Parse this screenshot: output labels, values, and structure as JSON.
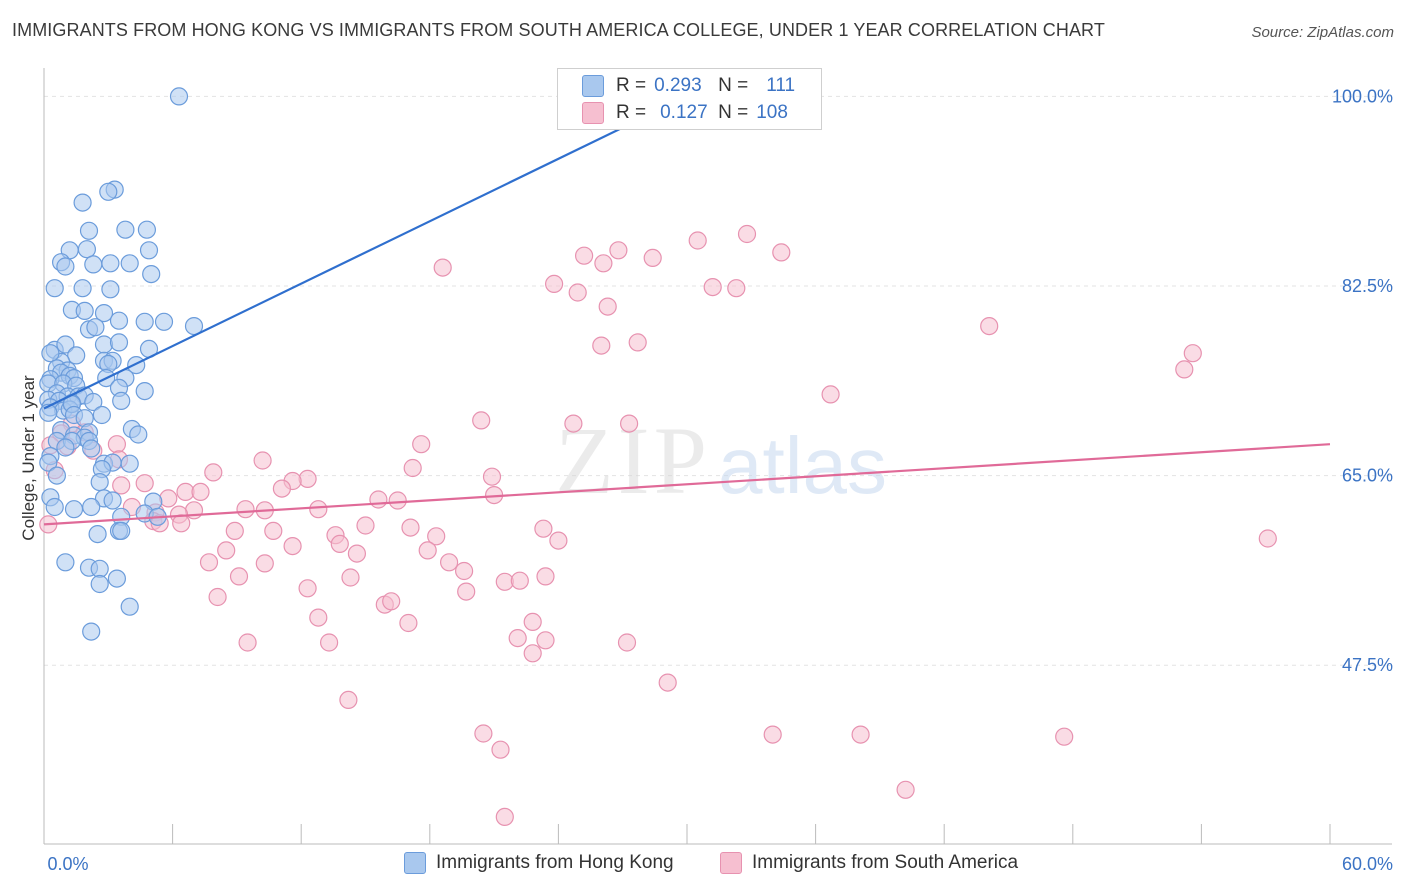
{
  "header": {
    "title": "IMMIGRANTS FROM HONG KONG VS IMMIGRANTS FROM SOUTH AMERICA COLLEGE, UNDER 1 YEAR CORRELATION CHART",
    "source": "Source: ZipAtlas.com"
  },
  "legend": {
    "r_label": "R =",
    "n_label": "N =",
    "hk": {
      "r": "0.293",
      "n": "111"
    },
    "sa": {
      "r": "0.127",
      "n": "108"
    }
  },
  "watermark": {
    "zip": "ZIP",
    "atlas": "atlas"
  },
  "colors": {
    "blue_fill": "#a9c8ee",
    "blue_stroke": "#6b9cdb",
    "blue_line": "#2f6fce",
    "pink_fill": "#f6bfd0",
    "pink_stroke": "#e792b0",
    "pink_line": "#e06a98",
    "tick_label": "#3b73c4",
    "grid": "#e3e3e3"
  },
  "chart_data": {
    "type": "scatter",
    "title": "IMMIGRANTS FROM HONG KONG VS IMMIGRANTS FROM SOUTH AMERICA COLLEGE, UNDER 1 YEAR CORRELATION CHART",
    "ylabel": "College, Under 1 year",
    "xlabel": "",
    "xlim": [
      0,
      60
    ],
    "ylim": [
      31,
      101.7
    ],
    "x_tick_labels": [
      "0.0%",
      "60.0%"
    ],
    "y_ticks": [
      47.5,
      65.0,
      82.5,
      100.0
    ],
    "y_tick_labels": [
      "47.5%",
      "65.0%",
      "82.5%",
      "100.0%"
    ],
    "grid": "horizontal dashed",
    "legend_placement": "top-center",
    "series": [
      {
        "name": "Immigrants from Hong Kong",
        "color": "blue",
        "trend": {
          "x": [
            0,
            30
          ],
          "y": [
            71.2,
            100.0
          ]
        },
        "points": [
          [
            6.3,
            100
          ],
          [
            3.3,
            91.4
          ],
          [
            1.8,
            90.2
          ],
          [
            3.0,
            91.2
          ],
          [
            4.8,
            87.7
          ],
          [
            3.8,
            87.7
          ],
          [
            2.1,
            87.6
          ],
          [
            2.0,
            85.9
          ],
          [
            4.0,
            84.6
          ],
          [
            1.2,
            85.8
          ],
          [
            4.9,
            85.8
          ],
          [
            0.8,
            84.7
          ],
          [
            3.1,
            84.6
          ],
          [
            2.3,
            84.5
          ],
          [
            1.0,
            84.3
          ],
          [
            0.5,
            82.3
          ],
          [
            1.8,
            82.3
          ],
          [
            3.1,
            82.2
          ],
          [
            5.0,
            83.6
          ],
          [
            1.3,
            80.3
          ],
          [
            1.9,
            80.2
          ],
          [
            2.8,
            80.0
          ],
          [
            3.5,
            79.3
          ],
          [
            4.7,
            79.2
          ],
          [
            5.6,
            79.2
          ],
          [
            7.0,
            78.8
          ],
          [
            2.1,
            78.5
          ],
          [
            2.4,
            78.7
          ],
          [
            2.8,
            77.1
          ],
          [
            3.5,
            77.3
          ],
          [
            0.5,
            76.6
          ],
          [
            1.0,
            77.1
          ],
          [
            4.9,
            76.7
          ],
          [
            1.5,
            76.1
          ],
          [
            0.8,
            75.5
          ],
          [
            0.3,
            76.3
          ],
          [
            2.8,
            75.6
          ],
          [
            3.2,
            75.6
          ],
          [
            3.0,
            75.3
          ],
          [
            4.3,
            75.2
          ],
          [
            0.6,
            74.9
          ],
          [
            1.1,
            74.7
          ],
          [
            0.8,
            74.5
          ],
          [
            1.2,
            74.2
          ],
          [
            0.3,
            73.9
          ],
          [
            1.4,
            74.0
          ],
          [
            2.9,
            74.0
          ],
          [
            3.8,
            74.0
          ],
          [
            0.2,
            73.5
          ],
          [
            0.9,
            73.5
          ],
          [
            1.5,
            73.3
          ],
          [
            3.5,
            73.1
          ],
          [
            4.7,
            72.8
          ],
          [
            0.6,
            72.6
          ],
          [
            1.1,
            72.3
          ],
          [
            1.6,
            72.3
          ],
          [
            1.9,
            72.4
          ],
          [
            0.2,
            72.0
          ],
          [
            0.7,
            71.9
          ],
          [
            1.3,
            71.7
          ],
          [
            2.3,
            71.8
          ],
          [
            3.6,
            71.9
          ],
          [
            0.3,
            71.3
          ],
          [
            0.9,
            71.0
          ],
          [
            1.2,
            71.1
          ],
          [
            1.3,
            71.6
          ],
          [
            0.2,
            70.8
          ],
          [
            1.4,
            70.6
          ],
          [
            2.7,
            70.6
          ],
          [
            1.9,
            70.3
          ],
          [
            0.8,
            69.2
          ],
          [
            1.4,
            68.7
          ],
          [
            2.1,
            69.0
          ],
          [
            1.9,
            68.5
          ],
          [
            4.1,
            69.3
          ],
          [
            4.4,
            68.8
          ],
          [
            0.6,
            68.2
          ],
          [
            1.3,
            68.2
          ],
          [
            2.1,
            68.2
          ],
          [
            1.0,
            67.6
          ],
          [
            2.2,
            67.5
          ],
          [
            0.3,
            66.8
          ],
          [
            0.2,
            66.2
          ],
          [
            2.8,
            66.1
          ],
          [
            3.2,
            66.2
          ],
          [
            4.0,
            66.1
          ],
          [
            2.7,
            65.6
          ],
          [
            0.6,
            65.0
          ],
          [
            2.6,
            64.4
          ],
          [
            0.3,
            63.0
          ],
          [
            2.8,
            62.9
          ],
          [
            3.2,
            62.7
          ],
          [
            5.1,
            62.6
          ],
          [
            0.5,
            62.1
          ],
          [
            2.2,
            62.1
          ],
          [
            1.4,
            61.9
          ],
          [
            3.6,
            61.2
          ],
          [
            4.7,
            61.5
          ],
          [
            5.3,
            61.2
          ],
          [
            2.5,
            59.6
          ],
          [
            3.5,
            59.9
          ],
          [
            3.6,
            59.9
          ],
          [
            1.0,
            57.0
          ],
          [
            2.1,
            56.5
          ],
          [
            2.6,
            56.4
          ],
          [
            3.4,
            55.5
          ],
          [
            2.6,
            55.0
          ],
          [
            4.0,
            52.9
          ],
          [
            2.2,
            50.6
          ]
        ]
      },
      {
        "name": "Immigrants from South America",
        "color": "pink",
        "trend": {
          "x": [
            0,
            60
          ],
          "y": [
            60.5,
            67.9
          ]
        },
        "points": [
          [
            35.8,
            100
          ],
          [
            32.8,
            87.3
          ],
          [
            30.5,
            86.7
          ],
          [
            26.8,
            85.8
          ],
          [
            34.4,
            85.6
          ],
          [
            25.2,
            85.3
          ],
          [
            28.4,
            85.1
          ],
          [
            26.1,
            84.6
          ],
          [
            18.6,
            84.2
          ],
          [
            23.8,
            82.7
          ],
          [
            31.2,
            82.4
          ],
          [
            32.3,
            82.3
          ],
          [
            24.9,
            81.9
          ],
          [
            26.3,
            80.6
          ],
          [
            44.1,
            78.8
          ],
          [
            27.7,
            77.3
          ],
          [
            26.0,
            77.0
          ],
          [
            53.6,
            76.3
          ],
          [
            53.2,
            74.8
          ],
          [
            36.7,
            72.5
          ],
          [
            20.4,
            70.1
          ],
          [
            24.7,
            69.8
          ],
          [
            27.3,
            69.8
          ],
          [
            1.3,
            69.8
          ],
          [
            1.9,
            69.0
          ],
          [
            0.8,
            68.9
          ],
          [
            3.4,
            67.9
          ],
          [
            1.1,
            67.7
          ],
          [
            0.3,
            67.8
          ],
          [
            2.3,
            67.3
          ],
          [
            17.6,
            67.9
          ],
          [
            10.2,
            66.4
          ],
          [
            3.5,
            66.5
          ],
          [
            17.2,
            65.7
          ],
          [
            0.5,
            65.5
          ],
          [
            7.9,
            65.3
          ],
          [
            12.3,
            64.7
          ],
          [
            11.6,
            64.5
          ],
          [
            20.9,
            64.9
          ],
          [
            3.6,
            64.1
          ],
          [
            4.7,
            64.3
          ],
          [
            6.6,
            63.5
          ],
          [
            7.3,
            63.5
          ],
          [
            11.1,
            63.8
          ],
          [
            21.0,
            63.2
          ],
          [
            5.8,
            62.9
          ],
          [
            15.6,
            62.8
          ],
          [
            16.5,
            62.7
          ],
          [
            4.1,
            62.1
          ],
          [
            7.0,
            61.8
          ],
          [
            9.4,
            61.9
          ],
          [
            10.3,
            61.8
          ],
          [
            12.8,
            61.9
          ],
          [
            5.2,
            61.6
          ],
          [
            6.3,
            61.4
          ],
          [
            5.1,
            60.8
          ],
          [
            5.4,
            60.6
          ],
          [
            6.4,
            60.6
          ],
          [
            0.2,
            60.5
          ],
          [
            15.0,
            60.4
          ],
          [
            17.1,
            60.2
          ],
          [
            23.3,
            60.1
          ],
          [
            8.9,
            59.9
          ],
          [
            10.7,
            59.9
          ],
          [
            13.6,
            59.5
          ],
          [
            18.3,
            59.4
          ],
          [
            24.0,
            59.0
          ],
          [
            57.1,
            59.2
          ],
          [
            11.6,
            58.5
          ],
          [
            13.8,
            58.7
          ],
          [
            8.5,
            58.1
          ],
          [
            14.6,
            57.8
          ],
          [
            17.9,
            58.1
          ],
          [
            7.7,
            57.0
          ],
          [
            10.3,
            56.9
          ],
          [
            18.9,
            57.0
          ],
          [
            19.6,
            56.2
          ],
          [
            9.1,
            55.7
          ],
          [
            14.3,
            55.6
          ],
          [
            21.5,
            55.2
          ],
          [
            22.2,
            55.3
          ],
          [
            23.4,
            55.7
          ],
          [
            12.3,
            54.6
          ],
          [
            19.7,
            54.3
          ],
          [
            8.1,
            53.8
          ],
          [
            15.9,
            53.1
          ],
          [
            16.2,
            53.4
          ],
          [
            12.8,
            51.9
          ],
          [
            17.0,
            51.4
          ],
          [
            22.8,
            51.5
          ],
          [
            22.1,
            50.0
          ],
          [
            23.4,
            49.8
          ],
          [
            9.5,
            49.6
          ],
          [
            13.3,
            49.6
          ],
          [
            27.2,
            49.6
          ],
          [
            22.8,
            48.6
          ],
          [
            29.1,
            45.9
          ],
          [
            14.2,
            44.3
          ],
          [
            20.5,
            41.2
          ],
          [
            21.3,
            39.7
          ],
          [
            34.0,
            41.1
          ],
          [
            38.1,
            41.1
          ],
          [
            47.6,
            40.9
          ],
          [
            40.2,
            36.0
          ],
          [
            21.5,
            33.5
          ]
        ]
      }
    ]
  },
  "bottom_legend": {
    "hk_label": "Immigrants from Hong Kong",
    "sa_label": "Immigrants from South America"
  }
}
